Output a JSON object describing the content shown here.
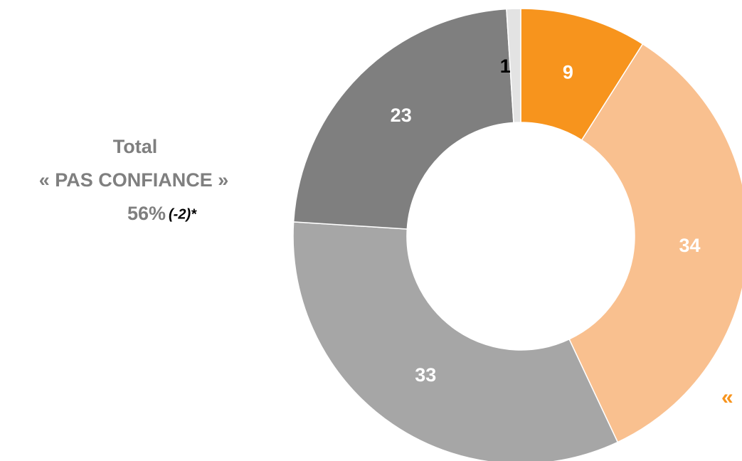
{
  "chart_data": {
    "type": "pie",
    "values": [
      9,
      34,
      33,
      23,
      1
    ],
    "colors": [
      "#f7941d",
      "#f9c08f",
      "#a6a6a6",
      "#7f7f7f",
      "#e3e3e3"
    ],
    "label_colors": [
      "#ffffff",
      "#ffffff",
      "#ffffff",
      "#ffffff",
      "#000000"
    ],
    "annotations": [
      "Total",
      "« PAS CONFIANCE »",
      "56%",
      "(-2)*",
      "«"
    ]
  }
}
